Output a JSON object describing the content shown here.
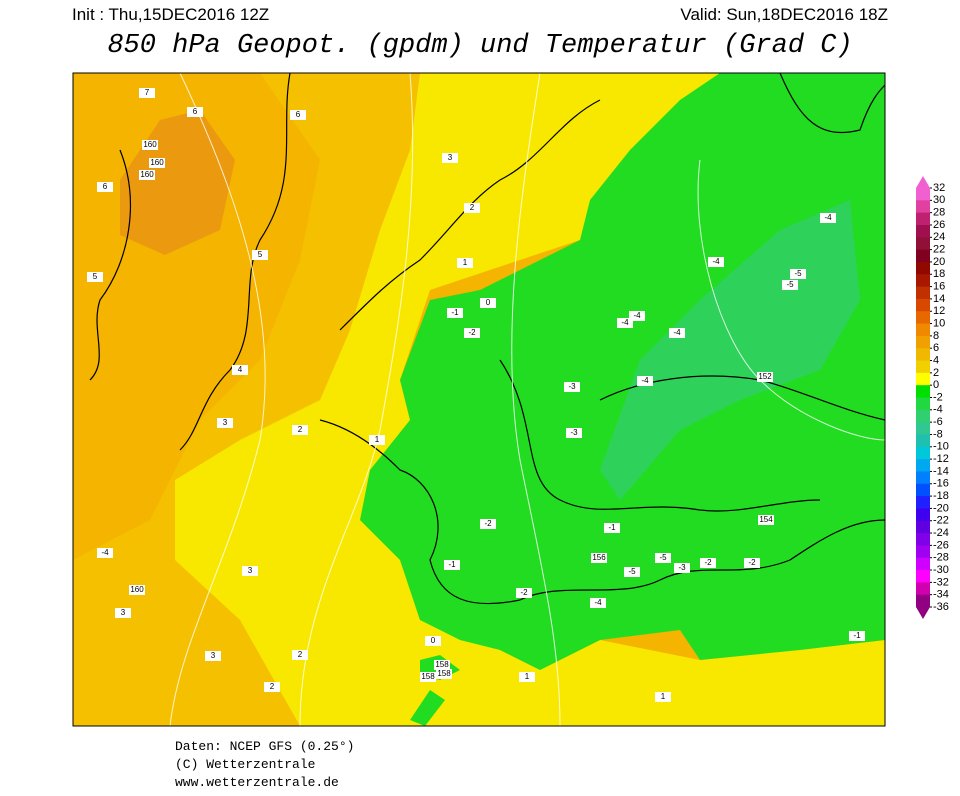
{
  "header": {
    "init": "Init : Thu,15DEC2016 12Z",
    "valid": "Valid: Sun,18DEC2016 18Z",
    "title": "850 hPa Geopot. (gpdm) und Temperatur (Grad C)"
  },
  "colorbar": {
    "ticks": [
      32,
      30,
      28,
      26,
      24,
      22,
      20,
      18,
      16,
      14,
      12,
      10,
      8,
      6,
      4,
      2,
      0,
      -2,
      -4,
      -6,
      -8,
      -10,
      -12,
      -14,
      -16,
      -18,
      -20,
      -22,
      -24,
      -26,
      -28,
      -30,
      -32,
      -34,
      -36
    ],
    "colors": [
      "#f060d0",
      "#e040a0",
      "#c02070",
      "#a01050",
      "#901038",
      "#800020",
      "#900800",
      "#a81800",
      "#c03000",
      "#d84800",
      "#e86800",
      "#f08800",
      "#f0a000",
      "#f0b800",
      "#f0d000",
      "#ffff00",
      "#00e000",
      "#20d840",
      "#30d070",
      "#30c890",
      "#20c0b0",
      "#00c8d8",
      "#00a8f0",
      "#0080ff",
      "#0050ff",
      "#2020ff",
      "#4000f0",
      "#6000e0",
      "#8000e8",
      "#a000f0",
      "#d000ff",
      "#ff00ff",
      "#d000b0",
      "#900080"
    ]
  },
  "map_labels": [
    "7",
    "6",
    "6",
    "160",
    "160",
    "160",
    "6",
    "5",
    "5",
    "4",
    "3",
    "3",
    "2",
    "1",
    "0",
    "3",
    "2",
    "1",
    "-1",
    "-2",
    "-4",
    "-4",
    "-4",
    "-3",
    "-4",
    "-3",
    "-4",
    "-5",
    "-5",
    "-4",
    "152",
    "-2",
    "-1",
    "-1",
    "-2",
    "-4",
    "-5",
    "-5",
    "-3",
    "-2",
    "154",
    "-2",
    "-1",
    "-4",
    "160",
    "3",
    "3",
    "158",
    "2",
    "2",
    "156",
    "158",
    "158",
    "0",
    "1",
    "1"
  ],
  "footer": [
    "Daten: NCEP GFS (0.25°)",
    "(C) Wetterzentrale",
    "www.wetterzentrale.de"
  ]
}
